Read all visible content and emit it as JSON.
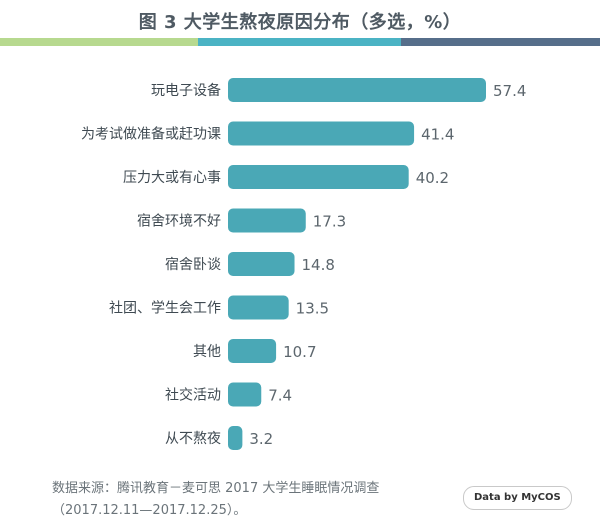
{
  "title": "图 3  大学生熬夜原因分布（多选，%）",
  "colors": {
    "bar": "#4aa8b6",
    "stripe_left": "#b7d98f",
    "stripe_mid": "#4bb3c4",
    "stripe_right": "#566e8a",
    "title": "#4f5a63"
  },
  "chart_data": {
    "type": "bar",
    "orientation": "horizontal",
    "title": "图 3  大学生熬夜原因分布（多选，%）",
    "categories": [
      "玩电子设备",
      "为考试做准备或赶功课",
      "压力大或有心事",
      "宿舍环境不好",
      "宿舍卧谈",
      "社团、学生会工作",
      "其他",
      "社交活动",
      "从不熬夜"
    ],
    "values": [
      57.4,
      41.4,
      40.2,
      17.3,
      14.8,
      13.5,
      10.7,
      7.4,
      3.2
    ],
    "value_labels": [
      "57.4",
      "41.4",
      "40.2",
      "17.3",
      "14.8",
      "13.5",
      "10.7",
      "7.4",
      "3.2"
    ],
    "unit": "%",
    "xlim": [
      0,
      57.4
    ],
    "grid": false,
    "legend": "none"
  },
  "footer": {
    "source_line1": "数据来源：腾讯教育－麦可思 2017 大学生睡眠情况调查",
    "source_line2": "（2017.12.11—2017.12.25）。",
    "brand": "Data by MyCOS"
  }
}
